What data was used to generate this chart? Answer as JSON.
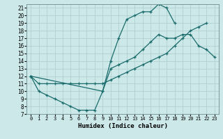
{
  "xlabel": "Humidex (Indice chaleur)",
  "bg_color": "#cce8e8",
  "grid_color": "#b0d0d0",
  "line_color": "#1a6b6b",
  "xlim": [
    -0.5,
    23.5
  ],
  "ylim": [
    7,
    21.5
  ],
  "xticks": [
    0,
    1,
    2,
    3,
    4,
    5,
    6,
    7,
    8,
    9,
    10,
    11,
    12,
    13,
    14,
    15,
    16,
    17,
    18,
    19,
    20,
    21,
    22,
    23
  ],
  "yticks": [
    7,
    8,
    9,
    10,
    11,
    12,
    13,
    14,
    15,
    16,
    17,
    18,
    19,
    20,
    21
  ],
  "series": [
    {
      "x": [
        0,
        1,
        2,
        3,
        4,
        5,
        6,
        7,
        8,
        9,
        10,
        11,
        12,
        13,
        14,
        15,
        16,
        17,
        18
      ],
      "y": [
        12,
        10,
        9.5,
        9,
        8.5,
        8,
        7.5,
        7.5,
        7.5,
        10,
        14,
        17,
        19.5,
        20,
        20.5,
        20.5,
        21.5,
        21,
        19
      ]
    },
    {
      "x": [
        0,
        1,
        2,
        3,
        4,
        5,
        6,
        7,
        8,
        9,
        10,
        11,
        12,
        13,
        14,
        15,
        16,
        17,
        18,
        19,
        20,
        21,
        22,
        23
      ],
      "y": [
        12,
        11,
        11,
        11,
        11,
        11,
        11,
        11,
        11,
        11,
        11.5,
        12,
        12.5,
        13,
        13.5,
        14,
        14.5,
        15,
        16,
        17,
        18,
        18.5,
        19,
        null
      ]
    },
    {
      "x": [
        0,
        9,
        10,
        11,
        12,
        13,
        14,
        15,
        16,
        17,
        18,
        19,
        20,
        21,
        22,
        23
      ],
      "y": [
        12,
        10,
        13,
        13.5,
        14,
        14.5,
        15.5,
        16.5,
        17.5,
        17,
        17,
        17.5,
        17.5,
        16,
        15.5,
        14.5
      ]
    }
  ]
}
